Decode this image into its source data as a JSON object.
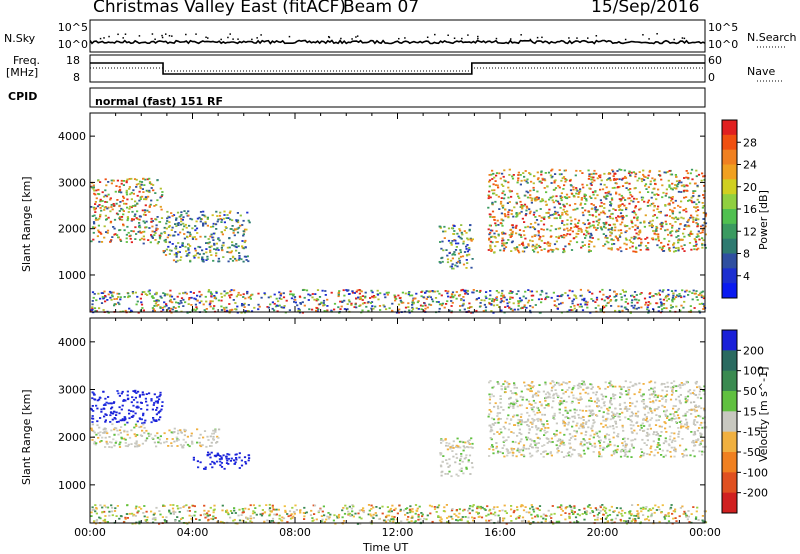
{
  "header": {
    "radar": "Christmas Valley East (fitACF)",
    "beam": "Beam 07",
    "date": "15/Sep/2016"
  },
  "nsky_panel": {
    "left_label": "N.Sky",
    "right_label": "N.Search",
    "left_ticks": [
      "10^5",
      "10^0"
    ],
    "right_ticks": [
      "10^5",
      "10^0"
    ]
  },
  "freq_panel": {
    "left_label_top": "Freq.",
    "left_label_bottom": "[MHz]",
    "right_label": "Nave",
    "left_ticks": [
      "18",
      "8"
    ],
    "right_ticks": [
      "60",
      "0"
    ]
  },
  "cpid_panel": {
    "label": "CPID",
    "text": "normal (fast) 151 RF"
  },
  "chart_data": [
    {
      "type": "heatmap",
      "name": "power",
      "ylabel": "Slant Range [km]",
      "xlabel": "",
      "yticks": [
        "4000",
        "3000",
        "2000",
        "1000"
      ],
      "yticks_values": [
        4000,
        3000,
        2000,
        1000
      ],
      "ylim": [
        200,
        4500
      ],
      "xlim_hours": [
        0,
        24
      ],
      "colorbar": {
        "label": "Power [dB]",
        "ticks": [
          "28",
          "24",
          "20",
          "16",
          "12",
          "8",
          "4"
        ],
        "colors": [
          "#e02020",
          "#f05010",
          "#f08020",
          "#f0a020",
          "#d0d020",
          "#90d040",
          "#50c050",
          "#3a9a60",
          "#2e7a70",
          "#2f4fa0",
          "#1c2fd0",
          "#0a1af0"
        ]
      },
      "regions": [
        {
          "t0": 0.0,
          "t1": 2.8,
          "r0": 1700,
          "r1": 3100,
          "level": "high"
        },
        {
          "t0": 2.8,
          "t1": 6.2,
          "r0": 1300,
          "r1": 2400,
          "level": "mid"
        },
        {
          "t0": 13.6,
          "t1": 14.9,
          "r0": 1150,
          "r1": 2100,
          "level": "mid"
        },
        {
          "t0": 15.5,
          "t1": 24.0,
          "r0": 1500,
          "r1": 3300,
          "level": "high"
        },
        {
          "t0": 0.0,
          "t1": 24.0,
          "r0": 200,
          "r1": 700,
          "level": "low"
        }
      ]
    },
    {
      "type": "heatmap",
      "name": "velocity",
      "ylabel": "Slant Range [km]",
      "xlabel": "Time UT",
      "yticks": [
        "4000",
        "3000",
        "2000",
        "1000"
      ],
      "yticks_values": [
        4000,
        3000,
        2000,
        1000
      ],
      "ylim": [
        200,
        4500
      ],
      "xticks": [
        "00:00",
        "04:00",
        "08:00",
        "12:00",
        "16:00",
        "20:00",
        "00:00"
      ],
      "xticks_hours": [
        0,
        4,
        8,
        12,
        16,
        20,
        24
      ],
      "colorbar": {
        "label": "Velocity [m s^-1]",
        "ticks": [
          "200",
          "100",
          "50",
          "15",
          "-15",
          "-50",
          "-100",
          "-200"
        ],
        "colors": [
          "#1a20d8",
          "#2a6a60",
          "#3a8a50",
          "#60c040",
          "#c8c8c0",
          "#f0b040",
          "#f08020",
          "#e05020",
          "#d02020"
        ]
      },
      "regions": [
        {
          "t0": 0.0,
          "t1": 2.8,
          "r0": 2300,
          "r1": 3000,
          "level": "toward"
        },
        {
          "t0": 0.0,
          "t1": 2.8,
          "r0": 1800,
          "r1": 2300,
          "level": "zero"
        },
        {
          "t0": 2.8,
          "t1": 5.0,
          "r0": 1800,
          "r1": 2200,
          "level": "zero"
        },
        {
          "t0": 4.0,
          "t1": 6.2,
          "r0": 1350,
          "r1": 1700,
          "level": "toward"
        },
        {
          "t0": 13.6,
          "t1": 14.9,
          "r0": 1200,
          "r1": 2000,
          "level": "zero"
        },
        {
          "t0": 15.5,
          "t1": 24.0,
          "r0": 1600,
          "r1": 3200,
          "level": "zero"
        },
        {
          "t0": 0.0,
          "t1": 24.0,
          "r0": 200,
          "r1": 600,
          "level": "ground"
        }
      ]
    }
  ]
}
